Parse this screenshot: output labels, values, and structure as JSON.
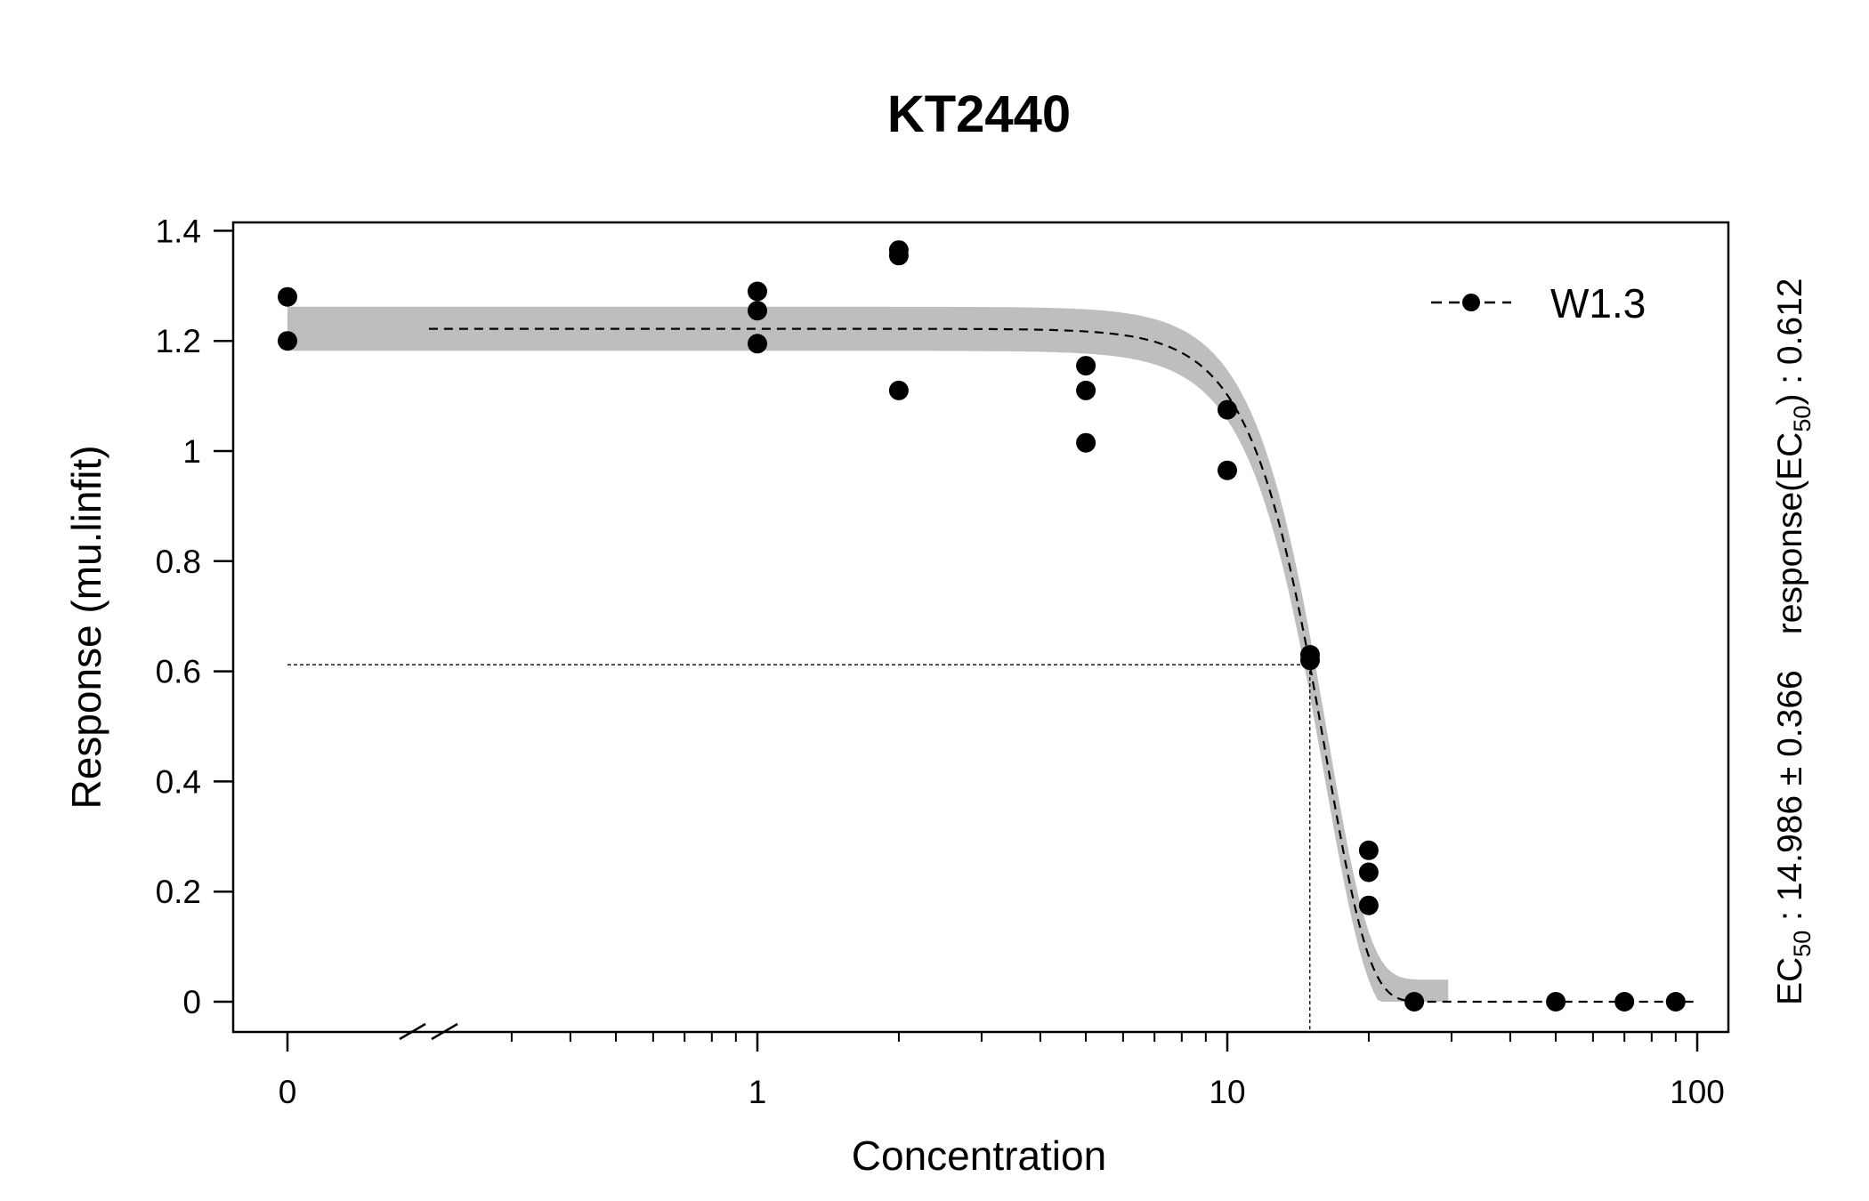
{
  "chart_data": {
    "type": "scatter",
    "title": "KT2440",
    "xlabel": "Concentration",
    "ylabel": "Response (mu.linfit)",
    "x_scale": "log",
    "x_ticks": [
      {
        "value": 0,
        "label": "0"
      },
      {
        "value": 1,
        "label": "1"
      },
      {
        "value": 10,
        "label": "10"
      },
      {
        "value": 100,
        "label": "100"
      }
    ],
    "y_ticks": [
      {
        "value": 0,
        "label": "0"
      },
      {
        "value": 0.2,
        "label": "0.2"
      },
      {
        "value": 0.4,
        "label": "0.4"
      },
      {
        "value": 0.6,
        "label": "0.6"
      },
      {
        "value": 0.8,
        "label": "0.8"
      },
      {
        "value": 1,
        "label": "1"
      },
      {
        "value": 1.2,
        "label": "1.2"
      },
      {
        "value": 1.4,
        "label": "1.4"
      }
    ],
    "ylim": [
      -0.05,
      1.42
    ],
    "points": [
      {
        "x": 0,
        "y": 1.28
      },
      {
        "x": 0,
        "y": 1.2
      },
      {
        "x": 1,
        "y": 1.29
      },
      {
        "x": 1,
        "y": 1.255
      },
      {
        "x": 1,
        "y": 1.195
      },
      {
        "x": 2,
        "y": 1.365
      },
      {
        "x": 2,
        "y": 1.355
      },
      {
        "x": 2,
        "y": 1.11
      },
      {
        "x": 5,
        "y": 1.155
      },
      {
        "x": 5,
        "y": 1.11
      },
      {
        "x": 5,
        "y": 1.015
      },
      {
        "x": 10,
        "y": 1.075
      },
      {
        "x": 10,
        "y": 0.965
      },
      {
        "x": 15,
        "y": 0.63
      },
      {
        "x": 15,
        "y": 0.62
      },
      {
        "x": 20,
        "y": 0.275
      },
      {
        "x": 20,
        "y": 0.235
      },
      {
        "x": 20,
        "y": 0.175
      },
      {
        "x": 25,
        "y": 0
      },
      {
        "x": 50,
        "y": 0
      },
      {
        "x": 70,
        "y": 0
      },
      {
        "x": 90,
        "y": 0
      }
    ],
    "fit": {
      "model": "W1.3",
      "upper": 1.222,
      "ec50": 14.986,
      "ec50_se": 0.366,
      "response_at_ec50": 0.612,
      "b": 4.7,
      "band_halfwidth_flat": 0.04,
      "band_halfwidth_mid": 0.055
    },
    "legend": {
      "label": "W1.3",
      "position": "top-right"
    },
    "annotation": {
      "ec50_prefix": "EC",
      "ec50_sub": "50",
      "ec50_text": " :  14.986 ± 0.366",
      "resp_prefix": "response",
      "resp_sub": "50",
      "resp_text": " :  0.612"
    }
  }
}
